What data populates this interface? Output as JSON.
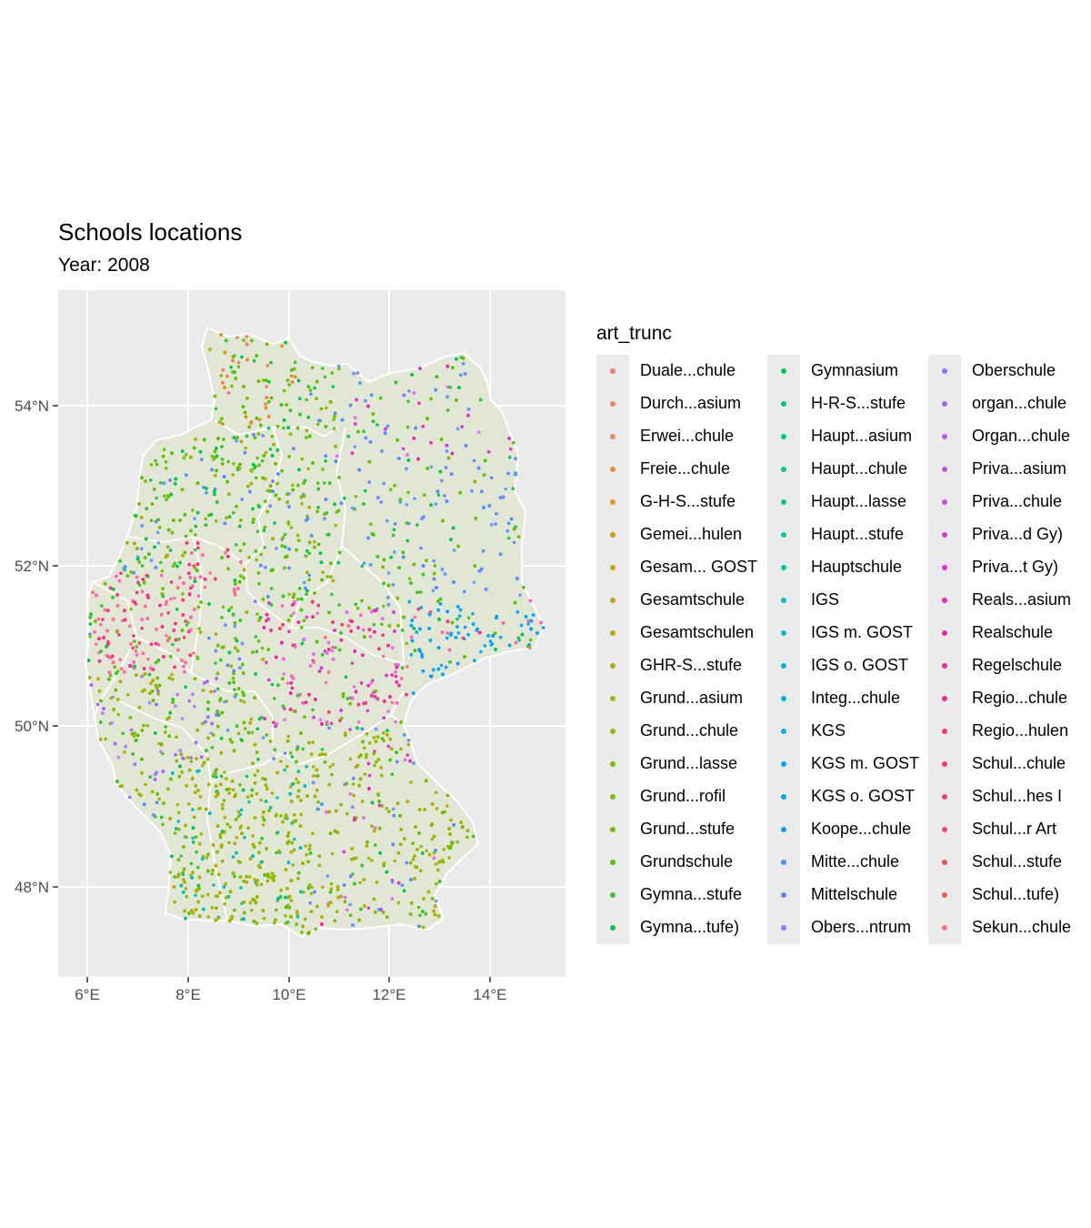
{
  "title": "Schools locations",
  "subtitle": "Year: 2008",
  "legend": {
    "title": "art_trunc",
    "items": [
      {
        "label": "Duale...chule",
        "color": "#F8766D"
      },
      {
        "label": "Durch...asium",
        "color": "#F47E5A"
      },
      {
        "label": "Erwei...chule",
        "color": "#EE8548"
      },
      {
        "label": "Freie...chule",
        "color": "#E88C34"
      },
      {
        "label": "G-H-S...stufe",
        "color": "#E1931C"
      },
      {
        "label": "Gemei...hulen",
        "color": "#D99900"
      },
      {
        "label": "Gesam... GOST",
        "color": "#D09F00"
      },
      {
        "label": "Gesamtschule",
        "color": "#C7A500"
      },
      {
        "label": "Gesamtschulen",
        "color": "#BDAA00"
      },
      {
        "label": "GHR-S...stufe",
        "color": "#B2AF00"
      },
      {
        "label": "Grund...asium",
        "color": "#A7B300"
      },
      {
        "label": "Grund...chule",
        "color": "#9AB700"
      },
      {
        "label": "Grund...lasse",
        "color": "#8CBB00"
      },
      {
        "label": "Grund...rofil",
        "color": "#7DBE00"
      },
      {
        "label": "Grund...stufe",
        "color": "#6BC100"
      },
      {
        "label": "Grundschule",
        "color": "#55C400"
      },
      {
        "label": "Gymna...stufe",
        "color": "#36C62F"
      },
      {
        "label": "Gymna...tufe)",
        "color": "#00C848"
      },
      {
        "label": "Gymnasium",
        "color": "#00C95C"
      },
      {
        "label": "H-R-S...stufe",
        "color": "#00C96E"
      },
      {
        "label": "Haupt...asium",
        "color": "#00C97F"
      },
      {
        "label": "Haupt...chule",
        "color": "#00C98F"
      },
      {
        "label": "Haupt...lasse",
        "color": "#00C79E"
      },
      {
        "label": "Haupt...stufe",
        "color": "#00C6AC"
      },
      {
        "label": "Hauptschule",
        "color": "#00C3B9"
      },
      {
        "label": "IGS",
        "color": "#00C0C5"
      },
      {
        "label": "IGS m. GOST",
        "color": "#00BCD0"
      },
      {
        "label": "IGS o. GOST",
        "color": "#00B8DB"
      },
      {
        "label": "Integ...chule",
        "color": "#00B3E4"
      },
      {
        "label": "KGS",
        "color": "#00ADED"
      },
      {
        "label": "KGS m. GOST",
        "color": "#00A7F5"
      },
      {
        "label": "KGS o. GOST",
        "color": "#00A0FB"
      },
      {
        "label": "Koope...chule",
        "color": "#1098FF"
      },
      {
        "label": "Mitte...chule",
        "color": "#4B90FF"
      },
      {
        "label": "Mittelschule",
        "color": "#6887FF"
      },
      {
        "label": "Obers...ntrum",
        "color": "#807DFF"
      },
      {
        "label": "Oberschule",
        "color": "#9473FA"
      },
      {
        "label": "organ...chule",
        "color": "#A568F4"
      },
      {
        "label": "Organ...chule",
        "color": "#B45DEC"
      },
      {
        "label": "Priva...asium",
        "color": "#C152E4"
      },
      {
        "label": "Priva...chule",
        "color": "#CD47DB"
      },
      {
        "label": "Priva...d Gy)",
        "color": "#D83CD0"
      },
      {
        "label": "Priva...t Gy)",
        "color": "#E032C5"
      },
      {
        "label": "Reals...asium",
        "color": "#E72AB9"
      },
      {
        "label": "Realschule",
        "color": "#EC26AD"
      },
      {
        "label": "Regelschule",
        "color": "#F026A1"
      },
      {
        "label": "Regio...chule",
        "color": "#F32A94"
      },
      {
        "label": "Regio...hulen",
        "color": "#F43187"
      },
      {
        "label": "Schul...chule",
        "color": "#F5397A"
      },
      {
        "label": "Schul...hes I",
        "color": "#F5416D"
      },
      {
        "label": "Schul...r Art",
        "color": "#F44A60"
      },
      {
        "label": "Schul...stufe",
        "color": "#F35353"
      },
      {
        "label": "Schul...tufe)",
        "color": "#F15C46"
      },
      {
        "label": "Sekun...chule",
        "color": "#F8766D"
      }
    ]
  },
  "axes": {
    "x_ticks": [
      "6°E",
      "8°E",
      "10°E",
      "12°E",
      "14°E"
    ],
    "y_ticks": [
      "54°N",
      "52°N",
      "50°N",
      "48°N"
    ]
  }
}
